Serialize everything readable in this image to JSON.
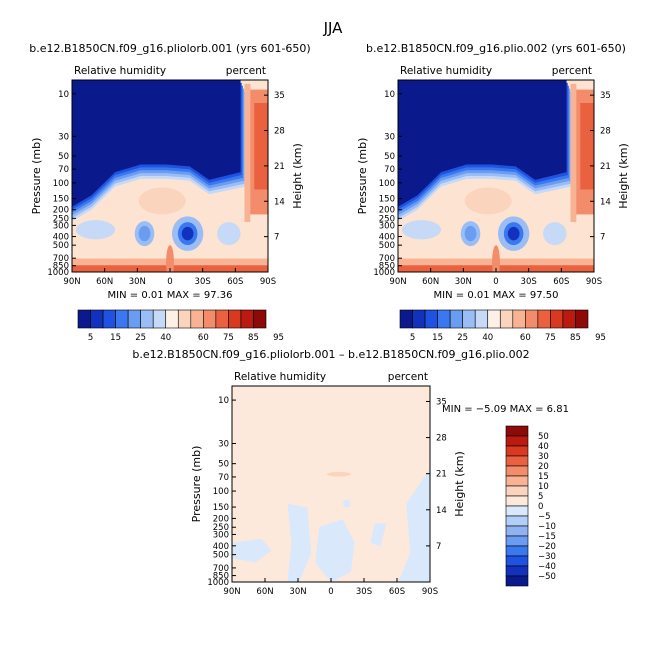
{
  "page": {
    "title": "JJA"
  },
  "chart_data": [
    {
      "type": "heatmap",
      "title": "b.e12.B1850CN.f09_g16.pliolorb.001 (yrs 601-650)",
      "subtitle_left": "Relative humidity",
      "subtitle_right": "percent",
      "ylabel": "Pressure (mb)",
      "ylabel_right": "Height (km)",
      "x_ticks": [
        "90N",
        "60N",
        "30N",
        "0",
        "30S",
        "60S",
        "90S"
      ],
      "y_ticks": [
        "10",
        "30",
        "50",
        "70",
        "100",
        "150",
        "200",
        "250",
        "300",
        "400",
        "500",
        "700",
        "850",
        "1000"
      ],
      "y_right_ticks": [
        "35",
        "28",
        "21",
        "14",
        "7"
      ],
      "stats_text": "MIN =    0.01   MAX =   97.36",
      "min": 0.01,
      "max": 97.36
    },
    {
      "type": "heatmap",
      "title": "b.e12.B1850CN.f09_g16.plio.002 (yrs 601-650)",
      "subtitle_left": "Relative humidity",
      "subtitle_right": "percent",
      "ylabel": "Pressure (mb)",
      "ylabel_right": "Height (km)",
      "x_ticks": [
        "90N",
        "60N",
        "30N",
        "0",
        "30S",
        "60S",
        "90S"
      ],
      "y_ticks": [
        "10",
        "30",
        "50",
        "70",
        "100",
        "150",
        "200",
        "250",
        "300",
        "400",
        "500",
        "700",
        "850",
        "1000"
      ],
      "y_right_ticks": [
        "35",
        "28",
        "21",
        "14",
        "7"
      ],
      "stats_text": "MIN =    0.01   MAX =   97.50",
      "min": 0.01,
      "max": 97.5
    },
    {
      "type": "heatmap",
      "title": "b.e12.B1850CN.f09_g16.pliolorb.001 – b.e12.B1850CN.f09_g16.plio.002",
      "subtitle_left": "Relative humidity",
      "subtitle_right": "percent",
      "ylabel": "Pressure (mb)",
      "ylabel_right": "Height (km)",
      "x_ticks": [
        "90N",
        "60N",
        "30N",
        "0",
        "30S",
        "60S",
        "90S"
      ],
      "y_ticks": [
        "10",
        "30",
        "50",
        "70",
        "100",
        "150",
        "200",
        "250",
        "300",
        "400",
        "500",
        "700",
        "850",
        "1000"
      ],
      "y_right_ticks": [
        "35",
        "28",
        "21",
        "14",
        "7"
      ],
      "stats_text": "MIN =   −5.09   MAX =    6.81",
      "min": -5.09,
      "max": 6.81
    }
  ],
  "colorbar_abs": {
    "labels": [
      "5",
      "15",
      "25",
      "40",
      "60",
      "75",
      "85",
      "95"
    ],
    "colors": [
      "#0a1a8c",
      "#1232bd",
      "#1f52e0",
      "#3a78ef",
      "#6a9cf2",
      "#9bbdf5",
      "#c6d9f7",
      "#fdf0e6",
      "#fbd4bd",
      "#f7b393",
      "#f28c6a",
      "#e9613f",
      "#d83a20",
      "#bb1a10",
      "#8c0a08"
    ]
  },
  "colorbar_diff": {
    "labels": [
      "50",
      "40",
      "30",
      "20",
      "15",
      "10",
      "5",
      "0",
      "−5",
      "−10",
      "−15",
      "−20",
      "−30",
      "−40",
      "−50"
    ],
    "colors": [
      "#8c0a08",
      "#bb1a10",
      "#d83a20",
      "#e9613f",
      "#f28c6a",
      "#f7b393",
      "#fbd4bd",
      "#fde9dc",
      "#d9e9fb",
      "#b3cff7",
      "#8fb3f2",
      "#6a9cf2",
      "#3a78ef",
      "#1f52e0",
      "#1232bd",
      "#0a1a8c"
    ]
  }
}
